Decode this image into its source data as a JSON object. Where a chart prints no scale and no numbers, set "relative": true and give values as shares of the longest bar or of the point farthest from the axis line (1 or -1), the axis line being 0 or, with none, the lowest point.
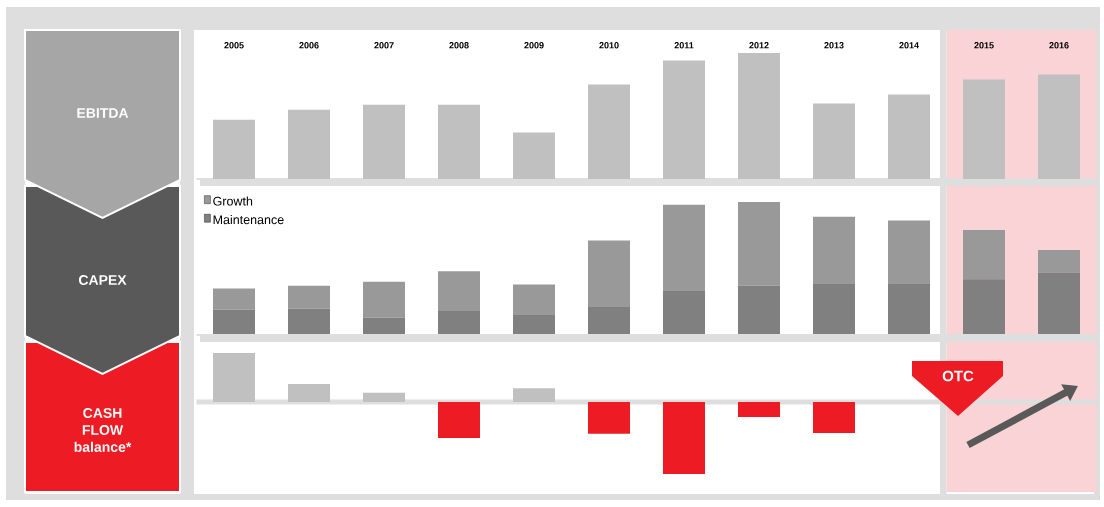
{
  "chart_data": [
    {
      "type": "bar",
      "title": "EBITDA",
      "relative": true,
      "categories": [
        "2005",
        "2006",
        "2007",
        "2008",
        "2009",
        "2010",
        "2011",
        "2012",
        "2013",
        "2014",
        "2015",
        "2016"
      ],
      "values": [
        0.47,
        0.55,
        0.59,
        0.59,
        0.37,
        0.75,
        0.94,
        1,
        0.6,
        0.67,
        0.79,
        0.83
      ],
      "color": "#c0c0c0",
      "bands": [
        {
          "axis": "x",
          "from": "2015",
          "to": "2016",
          "color": "#f9d3d5"
        }
      ]
    },
    {
      "type": "bar",
      "title": "CAPEX",
      "relative": true,
      "stacked": true,
      "categories": [
        "2005",
        "2006",
        "2007",
        "2008",
        "2009",
        "2010",
        "2011",
        "2012",
        "2013",
        "2014",
        "2015",
        "2016"
      ],
      "series": [
        {
          "name": "Maintenance",
          "color": "#808080",
          "values": [
            0.19,
            0.2,
            0.13,
            0.18,
            0.15,
            0.21,
            0.33,
            0.37,
            0.39,
            0.39,
            0.42,
            0.47
          ]
        },
        {
          "name": "Growth",
          "color": "#999999",
          "values": [
            0.16,
            0.17,
            0.27,
            0.3,
            0.23,
            0.5,
            0.65,
            0.63,
            0.5,
            0.47,
            0.37,
            0.17
          ]
        }
      ],
      "legend": "top left",
      "tick_labels": false,
      "bands": [
        {
          "axis": "x",
          "from": "2015",
          "to": "2016",
          "color": "#f9d3d5"
        }
      ]
    },
    {
      "type": "bar",
      "title": "CASH FLOW balance*",
      "relative": true,
      "categories": [
        "2005",
        "2006",
        "2007",
        "2008",
        "2009",
        "2010",
        "2011",
        "2012",
        "2013",
        "2014",
        "2015",
        "2016"
      ],
      "values": [
        0.68,
        0.25,
        0.13,
        -0.5,
        0.19,
        -0.44,
        -1,
        -0.21,
        -0.43,
        null,
        null,
        null
      ],
      "colors": [
        "#c0c0c0",
        "#c0c0c0",
        "#c0c0c0",
        "#ed1c24",
        "#c0c0c0",
        "#ed1c24",
        "#ed1c24",
        "#ed1c24",
        "#ed1c24",
        null,
        null,
        null
      ],
      "tick_labels": false,
      "annotations": [
        "OTC"
      ],
      "bands": [
        {
          "axis": "x",
          "from": "2015",
          "to": "2016",
          "color": "#f9d3d5"
        }
      ]
    }
  ]
}
